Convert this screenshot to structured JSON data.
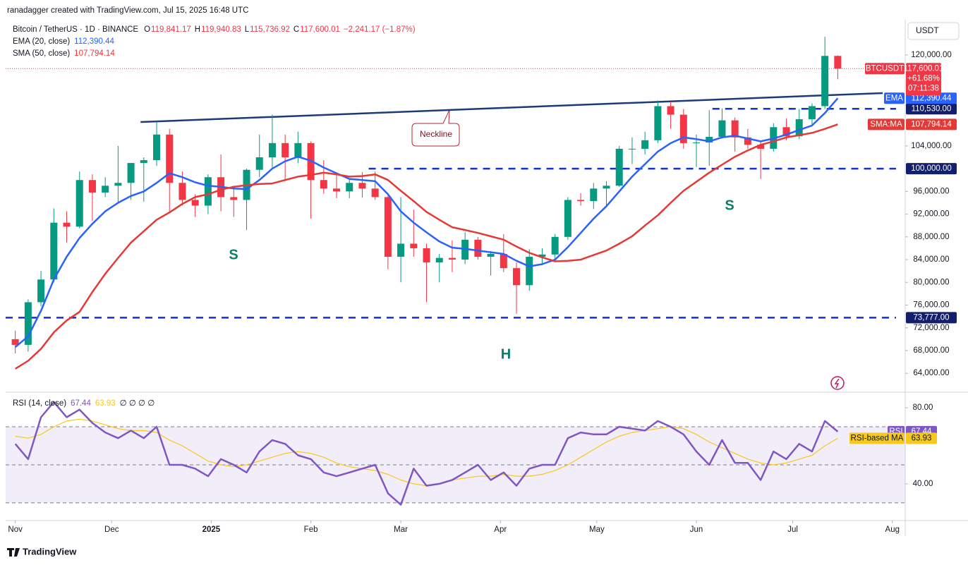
{
  "header": {
    "credit": "ranadagger created with TradingView.com, Jul 15, 2025 16:48 UTC",
    "currency": "USDT"
  },
  "footer": {
    "brand": "TradingView"
  },
  "chart_data": [
    {
      "type": "candlestick",
      "symbol": "Bitcoin / TetherUS · 1D · BINANCE",
      "ohlc": [
        {
          "key": "O",
          "label": "119,841.17"
        },
        {
          "key": "H",
          "label": "119,940.83"
        },
        {
          "key": "L",
          "label": "115,736.92"
        },
        {
          "key": "C",
          "label": "117,600.01"
        }
      ],
      "change": "−2,241.17 (−1.87%)",
      "up_color": "#089981",
      "down_color": "#f23645",
      "xlim": [
        -3,
        277
      ],
      "xticks": [
        {
          "value": 0,
          "label": "Nov"
        },
        {
          "value": 30,
          "label": "Dec"
        },
        {
          "value": 61,
          "label": "2025"
        },
        {
          "value": 92,
          "label": "Feb"
        },
        {
          "value": 120,
          "label": "Mar"
        },
        {
          "value": 151,
          "label": "Apr"
        },
        {
          "value": 181,
          "label": "May"
        },
        {
          "value": 212,
          "label": "Jun"
        },
        {
          "value": 242,
          "label": "Jul"
        },
        {
          "value": 273,
          "label": "Aug"
        }
      ],
      "ylim": [
        60800,
        126200
      ],
      "yticks": [
        {
          "value": 64000,
          "label": "64,000.00"
        },
        {
          "value": 68000,
          "label": "68,000.00"
        },
        {
          "value": 72000,
          "label": "72,000.00"
        },
        {
          "value": 76000,
          "label": "76,000.00"
        },
        {
          "value": 80000,
          "label": "80,000.00"
        },
        {
          "value": 84000,
          "label": "84,000.00"
        },
        {
          "value": 88000,
          "label": "88,000.00"
        },
        {
          "value": 92000,
          "label": "92,000.00"
        },
        {
          "value": 96000,
          "label": "96,000.00"
        },
        {
          "value": 104000,
          "label": "104,000.00"
        },
        {
          "value": 120000,
          "label": "120,000.00"
        }
      ],
      "grid": false,
      "x": [
        0,
        4,
        8,
        12,
        16,
        20,
        24,
        28,
        32,
        36,
        40,
        44,
        48,
        52,
        56,
        60,
        64,
        68,
        72,
        76,
        80,
        84,
        88,
        92,
        96,
        100,
        104,
        108,
        112,
        116,
        120,
        124,
        128,
        132,
        136,
        140,
        144,
        148,
        152,
        156,
        160,
        164,
        168,
        172,
        176,
        180,
        184,
        188,
        192,
        196,
        200,
        204,
        208,
        212,
        216,
        220,
        224,
        228,
        232,
        236,
        240,
        244,
        248,
        252,
        256
      ],
      "open": [
        70000,
        69000,
        76500,
        80500,
        90500,
        89800,
        98000,
        95800,
        97000,
        97500,
        101000,
        101500,
        106000,
        97500,
        94500,
        93500,
        98500,
        95000,
        94500,
        99800,
        102000,
        104500,
        102000,
        104500,
        98000,
        96500,
        96000,
        97500,
        96500,
        95000,
        84500,
        86800,
        86000,
        83500,
        84300,
        84000,
        87500,
        84500,
        85000,
        82500,
        79500,
        84500,
        84900,
        88000,
        94500,
        94300,
        96500,
        97000,
        103500,
        103500,
        105000,
        111000,
        109500,
        104500,
        104600,
        105600,
        108500,
        105500,
        104200,
        103500,
        107300,
        105700,
        108700,
        111000,
        119841.17
      ],
      "high": [
        71500,
        77000,
        82000,
        93000,
        92500,
        99500,
        99000,
        98500,
        104000,
        101000,
        102000,
        108300,
        107000,
        99500,
        95500,
        99000,
        102500,
        97000,
        100000,
        106000,
        109500,
        106000,
        106500,
        104800,
        101500,
        99000,
        98300,
        99400,
        99500,
        95500,
        95000,
        92800,
        86800,
        85000,
        87400,
        88800,
        88000,
        85500,
        88500,
        83500,
        85800,
        86000,
        88500,
        95000,
        95700,
        97500,
        97800,
        104000,
        105500,
        106500,
        112000,
        111800,
        110500,
        106000,
        110300,
        110600,
        109000,
        107000,
        104800,
        108000,
        108800,
        110500,
        111500,
        123200,
        119940.83
      ],
      "low": [
        67500,
        67800,
        75800,
        80000,
        87000,
        89500,
        90800,
        95000,
        94000,
        94500,
        94200,
        100500,
        92500,
        93500,
        91500,
        92000,
        92500,
        91500,
        89200,
        98500,
        100000,
        97800,
        101000,
        91200,
        95600,
        94800,
        94800,
        94900,
        94500,
        82300,
        80000,
        84500,
        76500,
        80000,
        81800,
        83200,
        84000,
        81200,
        81800,
        74500,
        78500,
        83000,
        83900,
        87500,
        93500,
        92900,
        93400,
        96800,
        100800,
        102500,
        104500,
        107000,
        103500,
        100300,
        100500,
        105300,
        103000,
        103500,
        98200,
        103000,
        105000,
        105200,
        107500,
        110500,
        115736.92
      ],
      "close": [
        69000,
        76500,
        80500,
        90500,
        89800,
        98000,
        95800,
        97000,
        97500,
        101000,
        101500,
        106000,
        97500,
        94500,
        93500,
        98500,
        95000,
        94500,
        99800,
        102000,
        104500,
        102000,
        104500,
        98000,
        96500,
        96000,
        97500,
        96500,
        95000,
        84500,
        86800,
        86000,
        83500,
        84300,
        84000,
        87500,
        84500,
        85000,
        82500,
        79500,
        84500,
        84900,
        88000,
        94500,
        94300,
        96500,
        97000,
        103500,
        103500,
        105000,
        111000,
        109500,
        104500,
        104600,
        105600,
        108500,
        105500,
        104200,
        103500,
        107300,
        105700,
        108700,
        111000,
        119841.17,
        117600.01
      ],
      "series": [
        {
          "name": "EMA (20, close)",
          "last_label": "112,390.44",
          "tag": "EMA",
          "color": "#2962ff",
          "values": [
            68600,
            70500,
            75000,
            80500,
            84500,
            87800,
            90300,
            92500,
            94000,
            95200,
            96000,
            97500,
            99200,
            98500,
            97600,
            97000,
            96800,
            96500,
            96400,
            98000,
            100000,
            101300,
            102100,
            101400,
            100200,
            99200,
            98200,
            98000,
            97800,
            95500,
            92500,
            90500,
            88800,
            87200,
            86100,
            85900,
            85600,
            85300,
            85000,
            83800,
            82800,
            83200,
            84000,
            86200,
            88700,
            91200,
            93400,
            96000,
            98600,
            100800,
            103000,
            104500,
            105500,
            105200,
            104800,
            105500,
            105800,
            105300,
            104800,
            105300,
            106000,
            106800,
            107600,
            109800,
            112390.44
          ]
        },
        {
          "name": "SMA (50, close)",
          "last_label": "107,794.14",
          "tag": "SMA:MA",
          "color": "#e53935",
          "values": [
            64800,
            66200,
            68300,
            71200,
            73300,
            74800,
            78300,
            81500,
            84300,
            87000,
            89000,
            91000,
            92300,
            93800,
            95000,
            95500,
            96300,
            96800,
            97100,
            97300,
            97400,
            98000,
            98600,
            98900,
            99300,
            99000,
            98600,
            98700,
            99000,
            98000,
            96100,
            94300,
            92400,
            91000,
            89700,
            89200,
            88700,
            88100,
            87500,
            86300,
            85200,
            84400,
            83700,
            83800,
            84000,
            84800,
            85600,
            86800,
            88100,
            90000,
            91800,
            94000,
            96100,
            97700,
            99300,
            100700,
            102100,
            103200,
            104200,
            104800,
            105500,
            105900,
            106300,
            107000,
            107794.14
          ]
        }
      ],
      "last_price": {
        "name": "BTCUSDT",
        "value": 117600.01,
        "label": "117,600.01",
        "change": "+61.68%",
        "countdown": "07:11:38"
      },
      "levels": [
        {
          "value": 110530,
          "label": "110,530.00",
          "from": 217
        },
        {
          "value": 100000,
          "label": "100,000.00",
          "from": 110
        },
        {
          "value": 73777,
          "label": "73,777.00",
          "from": -3
        }
      ],
      "neckline": {
        "x": [
          39,
          270
        ],
        "y": [
          108200,
          113300
        ],
        "color": "#1c3c78",
        "label": "Neckline"
      },
      "annotations": [
        "S",
        "H",
        "S"
      ]
    },
    {
      "type": "line",
      "title": "RSI (14, close)",
      "extra": "∅ ∅ ∅ ∅",
      "xlim": [
        -3,
        277
      ],
      "ylim": [
        20.7,
        87.8
      ],
      "yticks": [
        {
          "value": 80,
          "label": "80.00"
        },
        {
          "value": 40,
          "label": "40.00"
        }
      ],
      "band": [
        30,
        70
      ],
      "midline": 50,
      "x": [
        0,
        4,
        8,
        12,
        16,
        20,
        24,
        28,
        32,
        36,
        40,
        44,
        48,
        52,
        56,
        60,
        64,
        68,
        72,
        76,
        80,
        84,
        88,
        92,
        96,
        100,
        104,
        108,
        112,
        116,
        120,
        124,
        128,
        132,
        136,
        140,
        144,
        148,
        152,
        156,
        160,
        164,
        168,
        172,
        176,
        180,
        184,
        188,
        192,
        196,
        200,
        204,
        208,
        212,
        216,
        220,
        224,
        228,
        232,
        236,
        240,
        244,
        248,
        252,
        256
      ],
      "series": [
        {
          "name": "RSI",
          "last_label": "67.44",
          "color": "#7e57c2",
          "values": [
            61,
            53,
            75,
            83,
            75,
            79,
            72,
            67,
            64,
            68,
            64,
            70,
            50,
            50,
            48,
            44,
            53,
            50,
            46,
            57,
            63,
            61,
            55,
            53,
            46,
            44,
            46,
            48,
            50,
            35,
            29,
            48,
            39,
            40,
            42,
            46,
            50,
            42,
            46,
            39,
            48,
            50,
            50,
            64,
            67,
            66,
            66,
            70,
            69,
            68,
            73,
            70,
            66,
            57,
            50,
            63,
            51,
            51,
            42,
            57,
            53,
            61,
            57,
            73,
            67.44
          ]
        },
        {
          "name": "RSI-based MA",
          "last_label": "63.93",
          "color": "#f7c81e",
          "values": [
            65,
            64,
            66,
            70,
            73,
            74,
            73,
            71,
            69,
            68,
            68,
            67,
            63,
            60,
            56,
            52,
            50,
            49,
            50,
            52,
            54,
            56,
            57,
            56,
            54,
            51,
            49,
            48,
            47,
            45,
            42,
            40,
            39,
            40,
            42,
            43,
            44,
            44,
            45,
            44,
            44,
            45,
            47,
            50,
            54,
            58,
            62,
            65,
            67,
            68,
            69,
            70,
            69,
            66,
            62,
            59,
            56,
            53,
            51,
            50,
            51,
            53,
            55,
            60,
            63.93
          ]
        }
      ]
    }
  ]
}
